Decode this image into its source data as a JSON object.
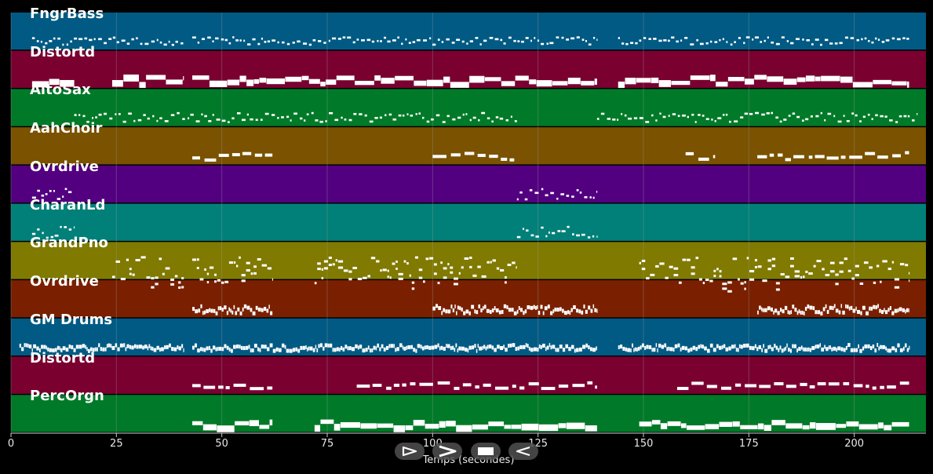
{
  "colors": {
    "background": "#000000",
    "note": "#ffffff",
    "grid": "#9a9a9a"
  },
  "controls": [
    {
      "name": "play-icon",
      "glyph": "play"
    },
    {
      "name": "forward-icon",
      "glyph": "chevron-right"
    },
    {
      "name": "stop-icon",
      "glyph": "stop"
    },
    {
      "name": "rewind-icon",
      "glyph": "back"
    }
  ],
  "chart_data": {
    "type": "piano-roll",
    "xlabel": "Temps (secondes)",
    "xlim": [
      0,
      217
    ],
    "xticks": [
      "0",
      "25",
      "50",
      "75",
      "100",
      "125",
      "150",
      "175",
      "200"
    ],
    "xtick_values": [
      0,
      25,
      50,
      75,
      100,
      125,
      150,
      175,
      200
    ],
    "grid": true,
    "tracks": [
      {
        "name": "FngrBass",
        "color": "#005a83",
        "segments": [
          [
            5,
            41
          ],
          [
            43,
            139
          ],
          [
            144,
            213
          ]
        ],
        "pitch_var": 0.1,
        "texture": "dots"
      },
      {
        "name": "Distortd",
        "color": "#7a0030",
        "segments": [
          [
            5,
            15
          ],
          [
            24,
            41
          ],
          [
            43,
            139
          ],
          [
            144,
            213
          ]
        ],
        "pitch_var": 0.1,
        "texture": "block"
      },
      {
        "name": "AltoSax",
        "color": "#007a28",
        "segments": [
          [
            15,
            120
          ],
          [
            139,
            215
          ]
        ],
        "pitch_var": 0.12,
        "texture": "dots"
      },
      {
        "name": "AahChoir",
        "color": "#7a5200",
        "segments": [
          [
            43,
            62
          ],
          [
            100,
            120
          ],
          [
            160,
            167
          ],
          [
            177,
            213
          ]
        ],
        "pitch_var": 0.1,
        "texture": "dash"
      },
      {
        "name": "Ovrdrive",
        "color": "#520080",
        "segments": [
          [
            5,
            15
          ],
          [
            120,
            139
          ]
        ],
        "pitch_var": 0.15,
        "texture": "dots"
      },
      {
        "name": "CharanLd",
        "color": "#008078",
        "segments": [
          [
            5,
            15
          ],
          [
            120,
            139
          ]
        ],
        "pitch_var": 0.15,
        "texture": "dots"
      },
      {
        "name": "GrandPno",
        "color": "#807a00",
        "segments": [
          [
            24,
            41
          ],
          [
            43,
            62
          ],
          [
            72,
            120
          ],
          [
            149,
            213
          ]
        ],
        "pitch_var": 0.35,
        "texture": "chords"
      },
      {
        "name": "Ovrdrive",
        "color": "#7a2000",
        "segments": [
          [
            43,
            62
          ],
          [
            100,
            139
          ],
          [
            177,
            213
          ]
        ],
        "pitch_var": 0.1,
        "texture": "dense"
      },
      {
        "name": "GM Drums",
        "color": "#005a83",
        "segments": [
          [
            2,
            41
          ],
          [
            43,
            139
          ],
          [
            144,
            213
          ]
        ],
        "pitch_var": 0.08,
        "texture": "dense"
      },
      {
        "name": "Distortd",
        "color": "#7a0030",
        "segments": [
          [
            43,
            62
          ],
          [
            82,
            139
          ],
          [
            158,
            213
          ]
        ],
        "pitch_var": 0.08,
        "texture": "dash"
      },
      {
        "name": "PercOrgn",
        "color": "#007a28",
        "segments": [
          [
            43,
            62
          ],
          [
            72,
            139
          ],
          [
            149,
            213
          ]
        ],
        "pitch_var": 0.08,
        "texture": "block"
      }
    ]
  }
}
